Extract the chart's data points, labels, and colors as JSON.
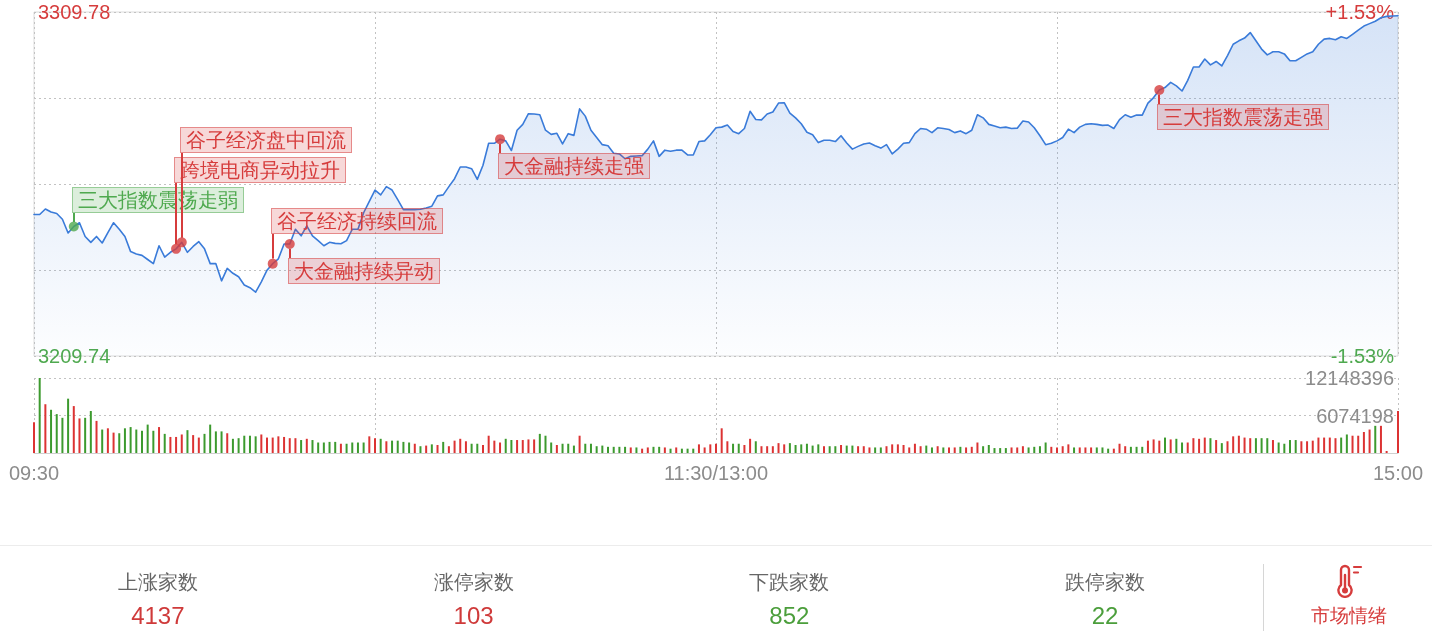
{
  "chart_data": [
    {
      "type": "area",
      "categories": [
        null,
        null,
        null,
        null,
        null,
        null,
        null,
        null,
        null,
        null,
        null,
        null,
        null,
        null,
        null,
        null,
        null,
        null,
        null,
        null,
        null,
        null,
        null,
        null,
        null,
        null,
        null,
        null,
        null,
        null,
        null,
        null,
        null,
        null,
        null,
        null,
        null,
        null,
        null,
        null,
        null,
        null,
        null,
        null,
        null,
        null,
        null,
        null,
        null,
        null,
        null,
        null,
        null,
        null,
        null,
        null,
        null,
        null,
        null,
        null,
        null,
        null,
        null,
        null,
        null,
        null,
        null,
        null,
        null,
        null,
        null,
        null,
        null,
        null,
        null,
        null,
        null,
        null,
        null,
        null,
        null,
        null,
        null,
        null,
        null,
        null,
        null,
        null,
        null,
        null,
        null,
        null,
        null,
        null,
        null,
        null,
        null,
        null,
        null,
        null,
        null,
        null,
        null,
        null,
        null,
        null,
        null,
        null,
        null,
        null,
        null,
        null,
        null,
        null,
        null,
        null,
        null,
        null,
        null,
        null,
        null,
        null,
        null,
        null,
        null,
        null,
        null,
        null,
        null,
        null,
        null,
        null,
        null,
        null,
        null,
        null,
        null,
        null,
        null,
        null,
        null,
        null,
        null,
        null,
        null,
        null,
        null,
        null,
        null,
        null,
        null,
        null,
        null,
        null,
        null,
        null,
        null,
        null,
        null,
        null,
        null,
        null,
        null,
        null,
        null,
        null,
        null,
        null,
        null,
        null,
        null,
        null,
        null,
        null,
        null,
        null,
        null,
        null,
        null,
        null,
        null,
        null,
        null,
        null,
        null,
        null,
        null,
        null,
        null,
        null,
        null,
        null,
        null,
        null,
        null,
        null,
        null,
        null,
        null,
        null,
        null,
        null,
        null,
        null,
        null,
        null,
        null,
        null,
        null,
        null,
        null,
        null,
        null,
        null,
        null,
        null,
        null,
        null,
        null,
        null,
        null,
        null,
        null,
        null,
        null,
        null,
        null,
        null,
        null,
        null,
        null,
        null,
        null,
        null,
        null,
        null,
        null,
        null,
        null,
        null,
        null
      ],
      "series": [
        {
          "color": "#3a7bd9",
          "values": [
            3250.9,
            3250.9,
            3252.5,
            3251.6,
            3251.2,
            3249.5,
            3245.5,
            3247.4,
            3248.5,
            3244.5,
            3242.8,
            3244.5,
            3242.6,
            3245.6,
            3248.5,
            3246.6,
            3244.5,
            3240.1,
            3239.4,
            3239.0,
            3237.8,
            3236.6,
            3241.8,
            3238.5,
            3239.9,
            3240.9,
            3242.8,
            3239.9,
            3241.6,
            3243.0,
            3240.9,
            3236.6,
            3236.6,
            3231.6,
            3235.2,
            3233.8,
            3232.8,
            3230.4,
            3229.6,
            3228.3,
            3231.3,
            3234.7,
            3236.6,
            3238.0,
            3242.3,
            3242.3,
            3246.6,
            3244.7,
            3247.6,
            3244.7,
            3243.3,
            3241.8,
            3242.8,
            3242.5,
            3242.4,
            3243.3,
            3246.6,
            3246.6,
            3251.4,
            3254.7,
            3258.0,
            3256.6,
            3259.0,
            3258.0,
            3255.2,
            3252.3,
            3252.3,
            3252.3,
            3252.4,
            3252.8,
            3253.3,
            3256.3,
            3256.6,
            3259.0,
            3261.3,
            3264.7,
            3264.7,
            3264.2,
            3261.1,
            3265.2,
            3271.6,
            3271.6,
            3272.8,
            3272.3,
            3269.5,
            3275.4,
            3277.1,
            3280.2,
            3280.1,
            3279.9,
            3275.4,
            3274.2,
            3274.5,
            3271.4,
            3274.4,
            3273.9,
            3281.6,
            3279.5,
            3275.4,
            3273.3,
            3271.2,
            3270.9,
            3268.7,
            3268.5,
            3267.1,
            3267.8,
            3267.9,
            3268.0,
            3269.9,
            3272.3,
            3267.8,
            3269.6,
            3269.3,
            3269.6,
            3269.6,
            3268.2,
            3268.2,
            3272.1,
            3272.3,
            3274.1,
            3276.1,
            3276.3,
            3276.9,
            3275.0,
            3274.4,
            3275.9,
            3280.9,
            3278.5,
            3278.4,
            3280.1,
            3280.7,
            3283.3,
            3283.4,
            3280.4,
            3279.0,
            3277.3,
            3274.8,
            3274.1,
            3271.8,
            3272.5,
            3272.5,
            3272.1,
            3273.8,
            3271.7,
            3269.9,
            3270.7,
            3271.4,
            3271.7,
            3270.9,
            3270.2,
            3271.2,
            3268.5,
            3269.9,
            3271.6,
            3271.8,
            3274.4,
            3275.9,
            3275.7,
            3274.7,
            3276.1,
            3275.9,
            3275.6,
            3274.7,
            3275.2,
            3274.4,
            3275.4,
            3279.9,
            3279.0,
            3277.1,
            3276.6,
            3276.1,
            3276.3,
            3275.9,
            3276.0,
            3278.1,
            3277.8,
            3276.1,
            3273.8,
            3271.2,
            3271.6,
            3272.3,
            3273.3,
            3275.7,
            3274.7,
            3276.3,
            3277.1,
            3277.3,
            3277.1,
            3276.8,
            3276.9,
            3275.9,
            3278.5,
            3279.9,
            3279.2,
            3279.8,
            3279.8,
            3283.3,
            3284.9,
            3287.1,
            3287.8,
            3289.3,
            3288.3,
            3286.8,
            3289.9,
            3293.8,
            3293.8,
            3296.1,
            3294.4,
            3295.4,
            3294.1,
            3297.1,
            3300.4,
            3301.4,
            3302.2,
            3303.8,
            3301.4,
            3299.0,
            3297.3,
            3298.2,
            3298.2,
            3297.6,
            3295.6,
            3295.6,
            3296.6,
            3297.6,
            3298.2,
            3300.4,
            3301.9,
            3302.1,
            3301.7,
            3302.6,
            3302.1,
            3303.3,
            3304.5,
            3305.7,
            3306.4,
            3307.1,
            3308.1,
            3308.5,
            3308.6,
            3308.7
          ]
        },
        {
          "type": "scatter",
          "color": "#4fa94f",
          "values": [
            null,
            null,
            null,
            null,
            null,
            null,
            null,
            3247.4,
            null,
            null,
            null,
            null,
            null,
            null,
            null,
            null,
            null,
            null,
            null,
            null,
            null,
            null,
            null,
            null,
            null,
            null,
            null,
            null,
            null,
            null,
            null,
            null,
            null,
            null,
            null,
            null,
            null,
            null,
            null,
            null,
            null,
            null,
            null,
            null,
            null,
            null,
            null,
            null,
            null,
            null,
            null,
            null,
            null,
            null,
            null,
            null,
            null,
            null,
            null,
            null,
            null,
            null,
            null,
            null,
            null,
            null,
            null,
            null,
            null,
            null,
            null,
            null,
            null,
            null,
            null,
            null,
            null,
            null,
            null,
            null,
            null,
            null,
            null,
            null,
            null,
            null,
            null,
            null,
            null,
            null,
            null,
            null,
            null,
            null,
            null,
            null,
            null,
            null,
            null,
            null,
            null,
            null,
            null,
            null,
            null,
            null,
            null,
            null,
            null,
            null,
            null,
            null,
            null,
            null,
            null,
            null,
            null,
            null,
            null,
            null,
            null,
            null,
            null,
            null,
            null,
            null,
            null,
            null,
            null,
            null,
            null,
            null,
            null,
            null,
            null,
            null,
            null,
            null,
            null,
            null,
            null,
            null,
            null,
            null,
            null,
            null,
            null,
            null,
            null,
            null,
            null,
            null,
            null,
            null,
            null,
            null,
            null,
            null,
            null,
            null,
            null,
            null,
            null,
            null,
            null,
            null,
            null,
            null,
            null,
            null,
            null,
            null,
            null,
            null,
            null,
            null,
            null,
            null,
            null,
            null,
            null,
            null,
            null,
            null,
            null,
            null,
            null,
            null,
            null,
            null,
            null,
            null,
            null,
            null,
            null,
            null,
            null,
            null,
            null,
            null,
            null,
            null,
            null,
            null,
            null,
            null,
            null,
            null,
            null,
            null,
            null,
            null,
            null,
            null,
            null,
            null,
            null,
            null,
            null,
            null,
            null,
            null,
            null,
            null,
            null,
            null,
            null,
            null,
            null,
            null,
            null,
            null,
            null,
            null,
            null,
            null,
            null,
            null,
            null,
            null,
            null
          ]
        },
        {
          "type": "scatter",
          "color": "#d63c3c",
          "values": [
            null,
            null,
            null,
            null,
            null,
            null,
            null,
            null,
            null,
            null,
            null,
            null,
            null,
            null,
            null,
            null,
            null,
            null,
            null,
            null,
            null,
            null,
            null,
            null,
            null,
            3240.9,
            3242.8,
            null,
            null,
            null,
            null,
            null,
            null,
            null,
            null,
            null,
            null,
            null,
            null,
            null,
            null,
            null,
            3236.6,
            null,
            null,
            3242.3,
            null,
            null,
            null,
            null,
            null,
            null,
            null,
            null,
            null,
            null,
            null,
            null,
            null,
            null,
            null,
            null,
            null,
            null,
            null,
            null,
            null,
            null,
            null,
            null,
            null,
            null,
            null,
            null,
            null,
            null,
            null,
            null,
            null,
            null,
            null,
            null,
            3272.8,
            null,
            null,
            null,
            null,
            null,
            null,
            null,
            null,
            null,
            null,
            null,
            null,
            null,
            null,
            null,
            null,
            null,
            null,
            null,
            null,
            null,
            null,
            null,
            null,
            null,
            null,
            null,
            null,
            null,
            null,
            null,
            null,
            null,
            null,
            null,
            null,
            null,
            null,
            null,
            null,
            null,
            null,
            null,
            null,
            null,
            null,
            null,
            null,
            null,
            null,
            null,
            null,
            null,
            null,
            null,
            null,
            null,
            null,
            null,
            null,
            null,
            null,
            null,
            null,
            null,
            null,
            null,
            null,
            null,
            null,
            null,
            null,
            null,
            null,
            null,
            null,
            null,
            null,
            null,
            null,
            null,
            null,
            null,
            null,
            null,
            null,
            null,
            null,
            null,
            null,
            null,
            null,
            null,
            null,
            null,
            null,
            null,
            null,
            null,
            null,
            null,
            null,
            null,
            null,
            null,
            null,
            null,
            null,
            null,
            null,
            null,
            null,
            null,
            null,
            null,
            3287.1,
            null,
            null,
            null,
            null,
            null,
            null,
            null,
            null,
            null,
            null,
            null,
            null,
            null,
            null,
            null,
            null,
            null,
            null,
            null,
            null,
            null,
            null,
            null,
            null,
            null,
            null,
            null,
            null,
            null,
            null,
            null,
            null,
            null,
            null,
            null,
            null,
            null,
            null,
            null,
            null,
            null,
            null
          ]
        }
      ],
      "ylim": [
        3209.74,
        3309.78
      ],
      "yticks": [
        3209.74,
        {
          "value": 3234.75,
          "label": null
        },
        {
          "value": 3259.76,
          "label": null
        },
        {
          "value": 3284.77,
          "label": null
        },
        3309.78
      ],
      "y2lim": [
        -1.53,
        1.53
      ],
      "y2ticks": [
        {
          "value": -1.53,
          "label": "-1.53%"
        },
        {
          "value": 1.53,
          "label": "+1.53%"
        }
      ],
      "grid": true,
      "tick_labels": "y",
      "annotations": [
        "三大指数震荡走弱",
        "跨境电商异动拉升",
        "谷子经济盘中回流",
        "谷子经济持续回流",
        "大金融持续异动",
        "大金融持续走强",
        "三大指数震荡走强"
      ]
    },
    {
      "type": "bar",
      "categories": [
        "09:30",
        null,
        null,
        null,
        null,
        null,
        null,
        null,
        null,
        null,
        null,
        null,
        null,
        null,
        null,
        null,
        null,
        null,
        null,
        null,
        null,
        null,
        null,
        null,
        null,
        null,
        null,
        null,
        null,
        null,
        null,
        null,
        null,
        null,
        null,
        null,
        null,
        null,
        null,
        null,
        null,
        null,
        null,
        null,
        null,
        null,
        null,
        null,
        null,
        null,
        null,
        null,
        null,
        null,
        null,
        null,
        null,
        null,
        null,
        null,
        null,
        null,
        null,
        null,
        null,
        null,
        null,
        null,
        null,
        null,
        null,
        null,
        null,
        null,
        null,
        null,
        null,
        null,
        null,
        null,
        null,
        null,
        null,
        null,
        null,
        null,
        null,
        null,
        null,
        null,
        null,
        null,
        null,
        null,
        null,
        null,
        null,
        null,
        null,
        null,
        null,
        null,
        null,
        null,
        null,
        null,
        null,
        null,
        null,
        null,
        null,
        null,
        null,
        null,
        null,
        null,
        null,
        null,
        null,
        null,
        "11:30/13:00",
        null,
        null,
        null,
        null,
        null,
        null,
        null,
        null,
        null,
        null,
        null,
        null,
        null,
        null,
        null,
        null,
        null,
        null,
        null,
        null,
        null,
        null,
        null,
        null,
        null,
        null,
        null,
        null,
        null,
        null,
        null,
        null,
        null,
        null,
        null,
        null,
        null,
        null,
        null,
        null,
        null,
        null,
        null,
        null,
        null,
        null,
        null,
        null,
        null,
        null,
        null,
        null,
        null,
        null,
        null,
        null,
        null,
        null,
        null,
        null,
        null,
        null,
        null,
        null,
        null,
        null,
        null,
        null,
        null,
        null,
        null,
        null,
        null,
        null,
        null,
        null,
        null,
        null,
        null,
        null,
        null,
        null,
        null,
        null,
        null,
        null,
        null,
        null,
        null,
        null,
        null,
        null,
        null,
        null,
        null,
        null,
        null,
        null,
        null,
        null,
        null,
        null,
        null,
        null,
        null,
        null,
        null,
        null,
        null,
        null,
        null,
        null,
        null,
        null,
        null,
        null,
        null,
        null,
        null,
        "15:00"
      ],
      "values": [
        5000000,
        12148396,
        7900000,
        7000000,
        6300000,
        5700000,
        8800000,
        7600000,
        5600000,
        5700000,
        6800000,
        5200000,
        3800000,
        4000000,
        3300000,
        3200000,
        4000000,
        4200000,
        3800000,
        3600000,
        4600000,
        3600000,
        4200000,
        3100000,
        2600000,
        2600000,
        3000000,
        3700000,
        2900000,
        2500000,
        3100000,
        4600000,
        3500000,
        3500000,
        3200000,
        2300000,
        2400000,
        2800000,
        2800000,
        2700000,
        3000000,
        2500000,
        2500000,
        2700000,
        2600000,
        2400000,
        2400000,
        2100000,
        2300000,
        2100000,
        1700000,
        1700000,
        1800000,
        1800000,
        1500000,
        1500000,
        1700000,
        1700000,
        1700000,
        2700000,
        2400000,
        2300000,
        1900000,
        2000000,
        2000000,
        1800000,
        1700000,
        1500000,
        1100000,
        1200000,
        1400000,
        1300000,
        1800000,
        1100000,
        2000000,
        2300000,
        1900000,
        1500000,
        1500000,
        1300000,
        2800000,
        2000000,
        1700000,
        2300000,
        2100000,
        2100000,
        2100000,
        2200000,
        2200000,
        3100000,
        2800000,
        1700000,
        1300000,
        1500000,
        1500000,
        1200000,
        2800000,
        1500000,
        1500000,
        1100000,
        1200000,
        1000000,
        1000000,
        1000000,
        1000000,
        900000,
        900000,
        700000,
        900000,
        1000000,
        1000000,
        900000,
        700000,
        900000,
        700000,
        700000,
        700000,
        1400000,
        900000,
        1400000,
        1500000,
        4000000,
        1900000,
        1500000,
        1500000,
        1300000,
        2300000,
        1900000,
        1100000,
        1100000,
        1100000,
        1600000,
        1400000,
        1600000,
        1300000,
        1400000,
        1500000,
        1200000,
        1400000,
        1100000,
        1100000,
        1100000,
        1300000,
        1200000,
        1200000,
        1100000,
        1100000,
        900000,
        900000,
        900000,
        1100000,
        1400000,
        1400000,
        1300000,
        900000,
        1500000,
        1100000,
        1200000,
        900000,
        1100000,
        900000,
        900000,
        900000,
        1000000,
        900000,
        1000000,
        1700000,
        1100000,
        1300000,
        800000,
        800000,
        800000,
        900000,
        900000,
        1100000,
        900000,
        1000000,
        1100000,
        1700000,
        1000000,
        900000,
        1100000,
        1400000,
        900000,
        900000,
        900000,
        900000,
        900000,
        900000,
        700000,
        700000,
        1500000,
        1100000,
        1000000,
        1000000,
        1000000,
        2000000,
        2200000,
        2000000,
        2500000,
        2200000,
        2300000,
        1700000,
        1700000,
        2400000,
        2300000,
        2500000,
        2400000,
        2100000,
        1600000,
        1900000,
        2700000,
        2800000,
        2500000,
        2400000,
        2400000,
        2400000,
        2400000,
        2100000,
        1700000,
        1500000,
        2100000,
        2100000,
        1900000,
        1900000,
        2000000,
        2500000,
        2500000,
        2500000,
        2400000,
        2500000,
        3000000,
        2800000,
        2800000,
        3400000,
        3800000,
        4400000,
        4400000,
        100000,
        null,
        6800000
      ],
      "colors": [
        "#dc3333",
        "#3c9a2e",
        "#dc3333",
        "#3c9a2e",
        "#3c9a2e",
        "#3c9a2e",
        "#3c9a2e",
        "#dc3333",
        "#dc3333",
        "#3c9a2e",
        "#3c9a2e",
        "#dc3333",
        "#3c9a2e",
        "#dc3333",
        "#dc3333",
        "#3c9a2e",
        "#3c9a2e",
        "#3c9a2e",
        "#3c9a2e",
        "#3c9a2e",
        "#3c9a2e",
        "#3c9a2e",
        "#dc3333",
        "#3c9a2e",
        "#dc3333",
        "#dc3333",
        "#dc3333",
        "#3c9a2e",
        "#dc3333",
        "#dc3333",
        "#3c9a2e",
        "#3c9a2e",
        "#3c9a2e",
        "#3c9a2e",
        "#dc3333",
        "#3c9a2e",
        "#3c9a2e",
        "#3c9a2e",
        "#3c9a2e",
        "#3c9a2e",
        "#dc3333",
        "#dc3333",
        "#dc3333",
        "#dc3333",
        "#dc3333",
        "#dc3333",
        "#dc3333",
        "#3c9a2e",
        "#dc3333",
        "#3c9a2e",
        "#3c9a2e",
        "#3c9a2e",
        "#3c9a2e",
        "#3c9a2e",
        "#dc3333",
        "#3c9a2e",
        "#3c9a2e",
        "#3c9a2e",
        "#3c9a2e",
        "#dc3333",
        "#dc3333",
        "#3c9a2e",
        "#dc3333",
        "#3c9a2e",
        "#3c9a2e",
        "#3c9a2e",
        "#3c9a2e",
        "#dc3333",
        "#3c9a2e",
        "#dc3333",
        "#3c9a2e",
        "#dc3333",
        "#3c9a2e",
        "#dc3333",
        "#dc3333",
        "#dc3333",
        "#dc3333",
        "#3c9a2e",
        "#3c9a2e",
        "#dc3333",
        "#dc3333",
        "#dc3333",
        "#dc3333",
        "#3c9a2e",
        "#3c9a2e",
        "#dc3333",
        "#dc3333",
        "#dc3333",
        "#dc3333",
        "#3c9a2e",
        "#3c9a2e",
        "#3c9a2e",
        "#dc3333",
        "#3c9a2e",
        "#3c9a2e",
        "#3c9a2e",
        "#dc3333",
        "#3c9a2e",
        "#3c9a2e",
        "#3c9a2e",
        "#3c9a2e",
        "#3c9a2e",
        "#3c9a2e",
        "#3c9a2e",
        "#3c9a2e",
        "#dc3333",
        "#3c9a2e",
        "#dc3333",
        "#dc3333",
        "#3c9a2e",
        "#3c9a2e",
        "#dc3333",
        "#3c9a2e",
        "#dc3333",
        "#3c9a2e",
        "#3c9a2e",
        "#3c9a2e",
        "#dc3333",
        "#dc3333",
        "#dc3333",
        "#dc3333",
        "#dc3333",
        "#dc3333",
        "#3c9a2e",
        "#3c9a2e",
        "#dc3333",
        "#dc3333",
        "#3c9a2e",
        "#dc3333",
        "#dc3333",
        "#dc3333",
        "#dc3333",
        "#dc3333",
        "#3c9a2e",
        "#3c9a2e",
        "#3c9a2e",
        "#3c9a2e",
        "#3c9a2e",
        "#3c9a2e",
        "#dc3333",
        "#3c9a2e",
        "#3c9a2e",
        "#dc3333",
        "#3c9a2e",
        "#3c9a2e",
        "#dc3333",
        "#dc3333",
        "#dc3333",
        "#3c9a2e",
        "#3c9a2e",
        "#dc3333",
        "#dc3333",
        "#dc3333",
        "#dc3333",
        "#dc3333",
        "#dc3333",
        "#dc3333",
        "#3c9a2e",
        "#3c9a2e",
        "#dc3333",
        "#3c9a2e",
        "#dc3333",
        "#dc3333",
        "#3c9a2e",
        "#dc3333",
        "#dc3333",
        "#dc3333",
        "#3c9a2e",
        "#3c9a2e",
        "#3c9a2e",
        "#3c9a2e",
        "#3c9a2e",
        "#dc3333",
        "#dc3333",
        "#dc3333",
        "#3c9a2e",
        "#3c9a2e",
        "#3c9a2e",
        "#3c9a2e",
        "#dc3333",
        "#dc3333",
        "#dc3333",
        "#dc3333",
        "#3c9a2e",
        "#dc3333",
        "#dc3333",
        "#dc3333",
        "#3c9a2e",
        "#3c9a2e",
        "#3c9a2e",
        "#dc3333",
        "#dc3333",
        "#dc3333",
        "#3c9a2e",
        "#3c9a2e",
        "#3c9a2e",
        "#dc3333",
        "#dc3333",
        "#dc3333",
        "#3c9a2e",
        "#dc3333",
        "#3c9a2e",
        "#3c9a2e",
        "#dc3333",
        "#dc3333",
        "#dc3333",
        "#dc3333",
        "#3c9a2e",
        "#dc3333",
        "#3c9a2e",
        "#dc3333",
        "#dc3333",
        "#dc3333",
        "#dc3333",
        "#dc3333",
        "#3c9a2e",
        "#3c9a2e",
        "#3c9a2e",
        "#dc3333",
        "#3c9a2e",
        "#3c9a2e",
        "#3c9a2e",
        "#3c9a2e",
        "#dc3333",
        "#dc3333",
        "#dc3333",
        "#dc3333",
        "#dc3333",
        "#dc3333",
        "#dc3333",
        "#3c9a2e",
        "#3c9a2e",
        "#dc3333",
        "#dc3333",
        "#dc3333",
        "#dc3333",
        "#3c9a2e",
        "#dc3333",
        "#dc3333",
        "#dc3333",
        "#dc3333"
      ],
      "ylim": [
        0,
        12148396
      ],
      "yticks": [
        6074198,
        12148396
      ],
      "grid": true
    },
    {
      "type": "other",
      "categories": [
        "上涨家数",
        "涨停家数",
        "下跌家数",
        "跌停家数"
      ],
      "values": [
        4137,
        103,
        852,
        22
      ],
      "colors": [
        "#cf3a3a",
        "#cf3a3a",
        "#4b9e3b",
        "#4b9e3b"
      ],
      "data_labels": true,
      "annotations": [
        "市场情绪"
      ]
    }
  ]
}
